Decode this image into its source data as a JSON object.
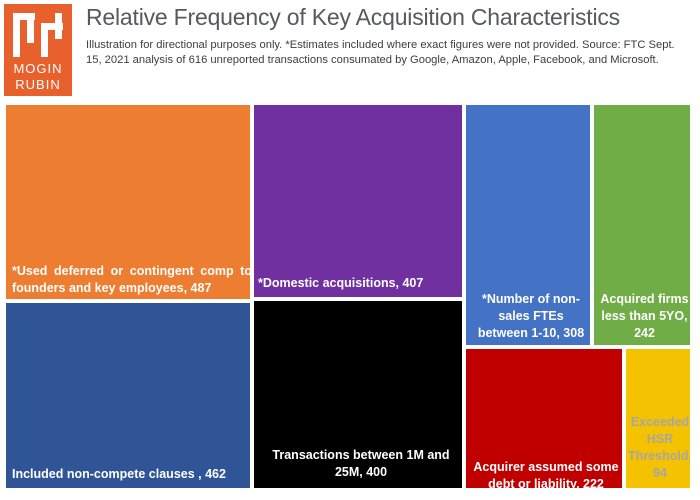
{
  "header": {
    "logo_line1": "MOGIN",
    "logo_line2": "RUBIN",
    "title": "Relative Frequency of Key Acquisition Characteristics",
    "subtitle": "Illustration for directional purposes only. *Estimates included where exact figures were not provided. Source: FTC Sept. 15, 2021 analysis of 616 unreported transactions consumated by Google, Amazon, Apple, Facebook, and Microsoft."
  },
  "colors": {
    "logo": "#e8612c",
    "border": "#ffffff"
  },
  "chart_data": {
    "type": "treemap",
    "title": "Relative Frequency of Key Acquisition Characteristics",
    "total_transactions": 616,
    "items": [
      {
        "name": "*Used deferred or contingent comp to founders and key employees",
        "value": 487,
        "label": "*Used deferred or contingent comp to founders and key employees, 487",
        "color": "#ed7d31",
        "text_color": "#ffffff"
      },
      {
        "name": "Included non-compete clauses",
        "value": 462,
        "label": "Included non-compete clauses , 462",
        "color": "#2f5597",
        "text_color": "#ffffff"
      },
      {
        "name": "*Domestic acquisitions",
        "value": 407,
        "label": "*Domestic acquisitions, 407",
        "color": "#7030a0",
        "text_color": "#ffffff"
      },
      {
        "name": "Transactions between 1M and 25M",
        "value": 400,
        "label": "Transactions between 1M and 25M, 400",
        "color": "#000000",
        "text_color": "#ffffff"
      },
      {
        "name": "*Number of non-sales FTEs between 1-10",
        "value": 308,
        "label": "*Number of non-sales FTEs between 1-10, 308",
        "color": "#4472c4",
        "text_color": "#ffffff"
      },
      {
        "name": "Acquired firms less than 5YO",
        "value": 242,
        "label": "Acquired firms less than 5YO, 242",
        "color": "#70ad47",
        "text_color": "#ffffff"
      },
      {
        "name": "Acquirer assumed some debt or liability",
        "value": 222,
        "label": "Acquirer assumed some debt or liability, 222",
        "color": "#c00000",
        "text_color": "#ffffff"
      },
      {
        "name": "Exceeded HSR Threshold",
        "value": 94,
        "label": "Exceeded HSR Threshold, 94",
        "color": "#f5c200",
        "text_color": "#a6a6a6"
      }
    ]
  }
}
